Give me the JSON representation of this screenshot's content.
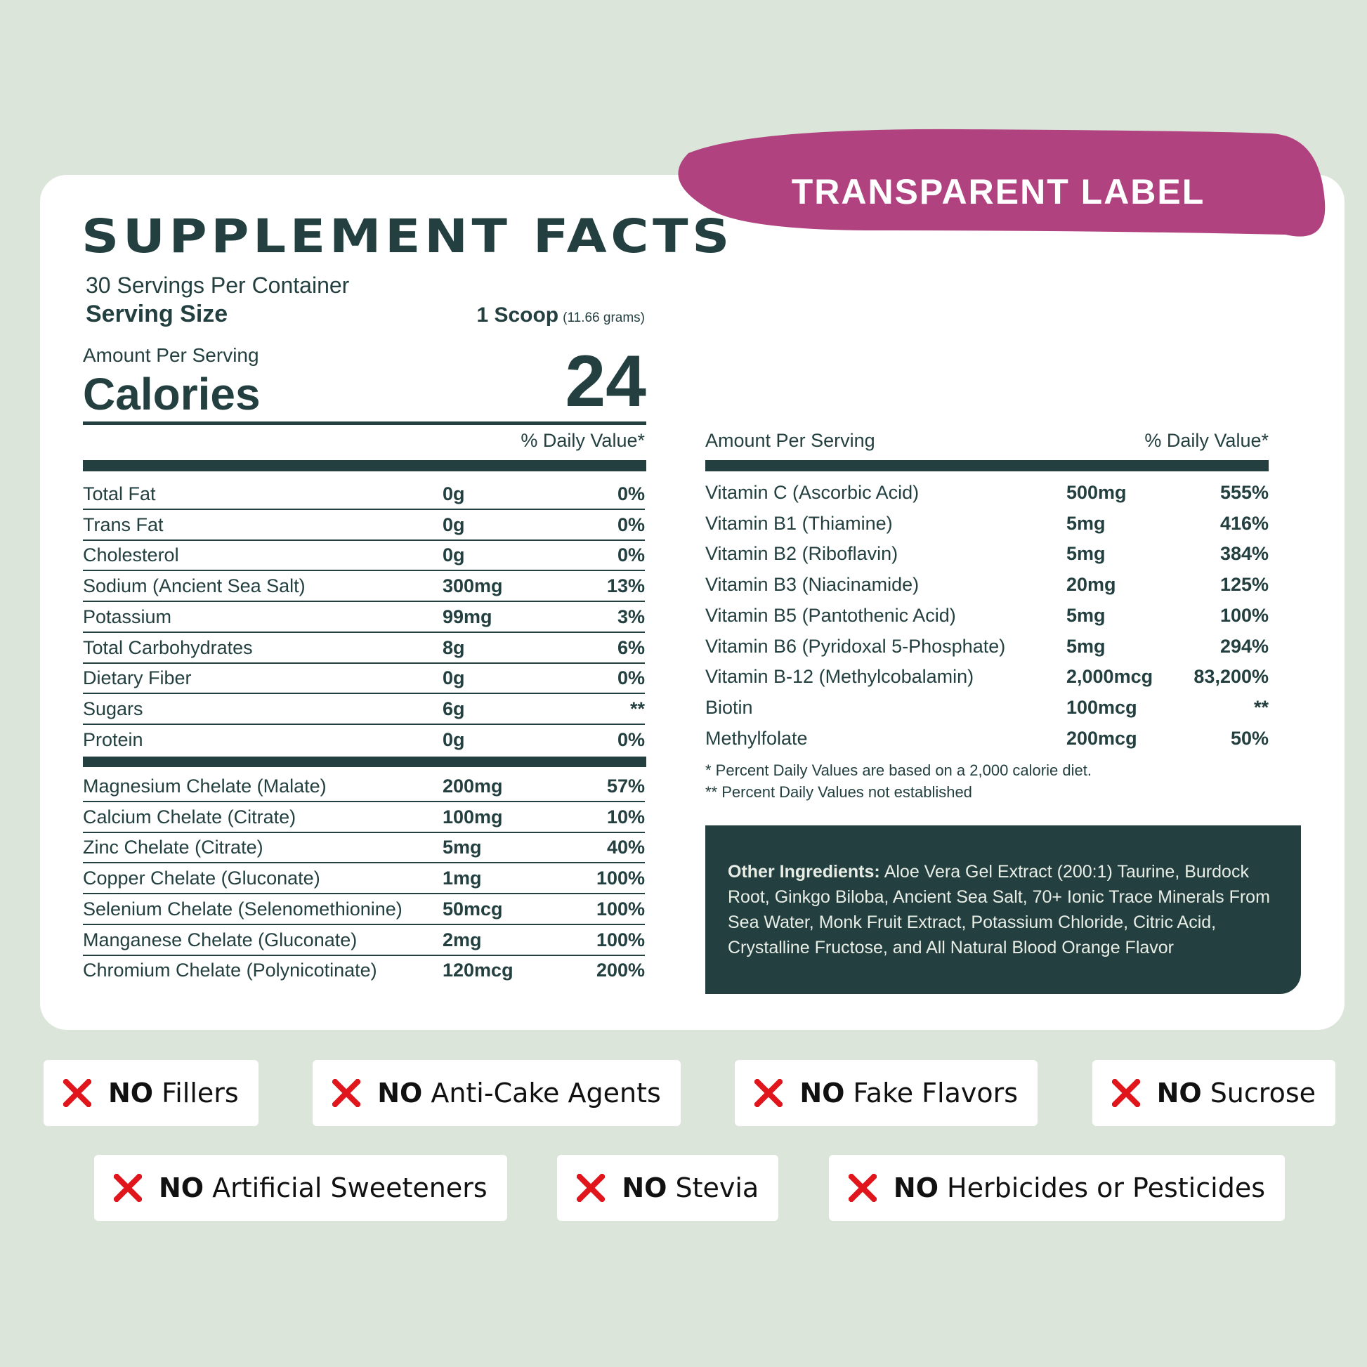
{
  "badge": "TRANSPARENT LABEL",
  "title": "SUPPLEMENT FACTS",
  "servings": "30 Servings Per Container",
  "serving_size": {
    "label": "Serving Size",
    "amount": "1 Scoop",
    "detail": "(11.66 grams)"
  },
  "amount_per_serving": "Amount Per Serving",
  "calories": {
    "label": "Calories",
    "value": 24
  },
  "daily_value_header": "% Daily Value*",
  "nutrients": [
    [
      "Total Fat",
      "0g",
      "0%"
    ],
    [
      "Trans Fat",
      "0g",
      "0%"
    ],
    [
      "Cholesterol",
      "0g",
      "0%"
    ],
    [
      "Sodium (Ancient Sea Salt)",
      "300mg",
      "13%"
    ],
    [
      "Potassium",
      "99mg",
      "3%"
    ],
    [
      "Total Carbohydrates",
      "8g",
      "6%"
    ],
    [
      "Dietary Fiber",
      "0g",
      "0%"
    ],
    [
      "Sugars",
      "6g",
      "**"
    ],
    [
      "Protein",
      "0g",
      "0%"
    ]
  ],
  "minerals": [
    [
      "Magnesium Chelate (Malate)",
      "200mg",
      "57%"
    ],
    [
      "Calcium Chelate (Citrate)",
      "100mg",
      "10%"
    ],
    [
      "Zinc Chelate (Citrate)",
      "5mg",
      "40%"
    ],
    [
      "Copper Chelate (Gluconate)",
      "1mg",
      "100%"
    ],
    [
      "Selenium Chelate (Selenomethionine)",
      "50mcg",
      "100%"
    ],
    [
      "Manganese Chelate (Gluconate)",
      "2mg",
      "100%"
    ],
    [
      "Chromium Chelate (Polynicotinate)",
      "120mcg",
      "200%"
    ]
  ],
  "vitamins_header": {
    "left": "Amount Per Serving",
    "right": "% Daily Value*"
  },
  "vitamins": [
    [
      "Vitamin C (Ascorbic Acid)",
      "500mg",
      "555%"
    ],
    [
      "Vitamin B1 (Thiamine)",
      "5mg",
      "416%"
    ],
    [
      "Vitamin B2 (Riboflavin)",
      "5mg",
      "384%"
    ],
    [
      "Vitamin B3 (Niacinamide)",
      "20mg",
      "125%"
    ],
    [
      "Vitamin B5 (Pantothenic Acid)",
      "5mg",
      "100%"
    ],
    [
      "Vitamin B6 (Pyridoxal 5-Phosphate)",
      "5mg",
      "294%"
    ],
    [
      "Vitamin B-12 (Methylcobalamin)",
      "2,000mcg",
      "83,200%"
    ],
    [
      "Biotin",
      "100mcg",
      "**"
    ],
    [
      "Methylfolate",
      "200mcg",
      "50%"
    ]
  ],
  "footnotes": [
    "*  Percent Daily Values are based on a 2,000 calorie diet.",
    "** Percent Daily Values not established"
  ],
  "other_ingredients": {
    "label": "Other Ingredients:",
    "text": "Aloe Vera Gel Extract (200:1) Taurine, Burdock Root, Ginkgo Biloba, Ancient Sea Salt, 70+ Ionic Trace Minerals From Sea Water, Monk Fruit Extract, Potassium Chloride, Citric Acid, Crystalline Fructose, and All Natural Blood Orange Flavor"
  },
  "claims": [
    [
      {
        "prefix": "NO",
        "text": "Fillers"
      },
      {
        "prefix": "NO",
        "text": "Anti-Cake Agents"
      },
      {
        "prefix": "NO",
        "text": "Fake Flavors"
      },
      {
        "prefix": "NO",
        "text": "Sucrose"
      }
    ],
    [
      {
        "prefix": "NO",
        "text": "Artificial Sweeteners"
      },
      {
        "prefix": "NO",
        "text": "Stevia"
      },
      {
        "prefix": "NO",
        "text": "Herbicides or Pesticides"
      }
    ]
  ]
}
